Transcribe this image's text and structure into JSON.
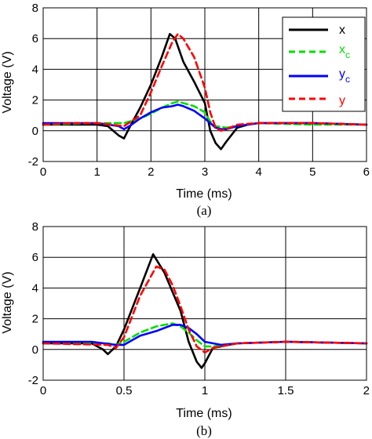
{
  "chart_data": [
    {
      "type": "line",
      "caption": "(a)",
      "xlabel": "Time (ms)",
      "ylabel": "Voltage (V)",
      "xlim": [
        0,
        6
      ],
      "ylim": [
        -2,
        8
      ],
      "xticks": [
        "0",
        "1",
        "2",
        "3",
        "4",
        "5",
        "6"
      ],
      "yticks": [
        "-2",
        "0",
        "2",
        "4",
        "6",
        "8"
      ],
      "grid": true,
      "legend_position": "top-right",
      "series": [
        {
          "name": "x",
          "color": "#000000",
          "dash": "solid",
          "x": [
            0,
            0.5,
            1,
            1.2,
            1.4,
            1.5,
            1.6,
            1.8,
            2,
            2.2,
            2.35,
            2.45,
            2.6,
            2.8,
            3,
            3.1,
            3.2,
            3.3,
            3.4,
            3.6,
            3.8,
            4,
            5,
            6
          ],
          "y": [
            0.4,
            0.4,
            0.4,
            0.3,
            -0.3,
            -0.5,
            0.2,
            1.5,
            3,
            4.8,
            6.3,
            6,
            4.5,
            3.2,
            1.8,
            0,
            -0.8,
            -1.2,
            -0.7,
            0.2,
            0.4,
            0.5,
            0.5,
            0.4
          ]
        },
        {
          "name": "x_c",
          "label_main": "x",
          "label_sub": "c",
          "color": "#00dd00",
          "dash": "dashed",
          "x": [
            0,
            1,
            1.5,
            1.8,
            2,
            2.2,
            2.4,
            2.5,
            2.6,
            2.8,
            3,
            3.1,
            3.2,
            3.4,
            3.6,
            4,
            5,
            6
          ],
          "y": [
            0.4,
            0.5,
            0.5,
            0.8,
            1.1,
            1.5,
            1.8,
            1.9,
            1.8,
            1.6,
            1.2,
            0.6,
            0.3,
            0.2,
            0.3,
            0.5,
            0.4,
            0.4
          ],
          "label_color": "#00dd00"
        },
        {
          "name": "y_c",
          "label_main": "y",
          "label_sub": "c",
          "color": "#0000ff",
          "dash": "solid",
          "x": [
            0,
            1,
            1.4,
            1.5,
            1.6,
            1.8,
            2,
            2.2,
            2.4,
            2.5,
            2.6,
            2.8,
            3,
            3.2,
            3.3,
            3.4,
            3.6,
            4,
            5,
            6
          ],
          "y": [
            0.5,
            0.5,
            0.3,
            0.1,
            0.3,
            0.8,
            1.2,
            1.5,
            1.6,
            1.7,
            1.6,
            1.3,
            0.8,
            0.2,
            0.1,
            0.1,
            0.3,
            0.5,
            0.5,
            0.4
          ],
          "label_color": "#0000ff"
        },
        {
          "name": "y",
          "color": "#ff0000",
          "dash": "dashed",
          "x": [
            0,
            0.5,
            1,
            1.5,
            1.8,
            2,
            2.2,
            2.4,
            2.5,
            2.6,
            2.8,
            3,
            3.1,
            3.2,
            3.3,
            3.4,
            3.6,
            4,
            5,
            6
          ],
          "y": [
            0.4,
            0.5,
            0.5,
            0.3,
            1.0,
            2.5,
            4.2,
            5.8,
            6.3,
            6.0,
            4.8,
            2.8,
            1.2,
            0.2,
            0.0,
            0.1,
            0.4,
            0.5,
            0.5,
            0.4
          ],
          "label_color": "#ff0000"
        }
      ]
    },
    {
      "type": "line",
      "caption": "(b)",
      "xlabel": "Time (ms)",
      "ylabel": "Voltage (V)",
      "xlim": [
        0,
        2
      ],
      "ylim": [
        -2,
        8
      ],
      "xticks": [
        "0",
        "0.5",
        "1",
        "1.5",
        "2"
      ],
      "yticks": [
        "-2",
        "0",
        "2",
        "4",
        "6",
        "8"
      ],
      "grid": true,
      "legend_position": "none",
      "series": [
        {
          "name": "x",
          "color": "#000000",
          "dash": "solid",
          "x": [
            0,
            0.3,
            0.37,
            0.4,
            0.45,
            0.5,
            0.6,
            0.68,
            0.75,
            0.85,
            0.9,
            0.95,
            0.98,
            1.0,
            1.05,
            1.2,
            1.5,
            2
          ],
          "y": [
            0.4,
            0.4,
            0,
            -0.3,
            0.2,
            1.3,
            4.0,
            6.2,
            5.0,
            2.5,
            0.5,
            -0.8,
            -1.2,
            -0.9,
            0.1,
            0.4,
            0.5,
            0.4
          ]
        },
        {
          "name": "x_c",
          "color": "#00dd00",
          "dash": "dashed",
          "x": [
            0,
            0.4,
            0.45,
            0.5,
            0.6,
            0.7,
            0.75,
            0.8,
            0.85,
            0.9,
            0.95,
            1.0,
            1.05,
            1.2,
            1.5,
            2
          ],
          "y": [
            0.4,
            0.4,
            0.3,
            0.5,
            1.1,
            1.5,
            1.6,
            1.7,
            1.5,
            1.1,
            0.6,
            0.2,
            0.2,
            0.4,
            0.5,
            0.4
          ]
        },
        {
          "name": "y_c",
          "color": "#0000ff",
          "dash": "solid",
          "x": [
            0,
            0.3,
            0.45,
            0.5,
            0.55,
            0.6,
            0.7,
            0.75,
            0.8,
            0.85,
            0.9,
            0.95,
            1.0,
            1.1,
            1.2,
            1.5,
            2
          ],
          "y": [
            0.5,
            0.5,
            0.3,
            0.3,
            0.6,
            0.9,
            1.2,
            1.4,
            1.6,
            1.6,
            1.4,
            1.0,
            0.5,
            0.3,
            0.4,
            0.5,
            0.4
          ]
        },
        {
          "name": "y",
          "color": "#ff0000",
          "dash": "dashed",
          "x": [
            0,
            0.4,
            0.45,
            0.5,
            0.6,
            0.7,
            0.75,
            0.8,
            0.85,
            0.9,
            0.95,
            1.0,
            1.05,
            1.2,
            1.5,
            2
          ],
          "y": [
            0.4,
            0.3,
            0.1,
            0.8,
            3.5,
            5.4,
            5.2,
            4.2,
            2.8,
            1.3,
            0.2,
            -0.2,
            0.1,
            0.4,
            0.5,
            0.4
          ]
        }
      ]
    }
  ]
}
